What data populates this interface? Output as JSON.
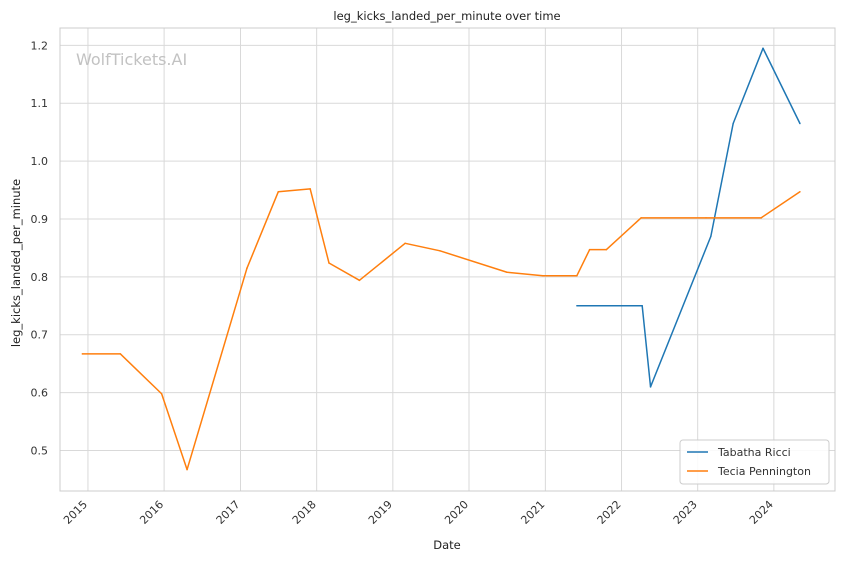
{
  "chart_data": {
    "type": "line",
    "title": "leg_kicks_landed_per_minute over time",
    "xlabel": "Date",
    "ylabel": "leg_kicks_landed_per_minute",
    "watermark": "WolfTickets.AI",
    "grid": true,
    "legend_position": "bottom-right",
    "xlim": [
      "2014-08-20",
      "2024-10-20"
    ],
    "ylim": [
      0.43,
      1.23
    ],
    "x_ticks": [
      "2015",
      "2016",
      "2017",
      "2018",
      "2019",
      "2020",
      "2021",
      "2022",
      "2023",
      "2024"
    ],
    "y_ticks": [
      0.5,
      0.6,
      0.7,
      0.8,
      0.9,
      1.0,
      1.1,
      1.2
    ],
    "y_tick_labels": [
      "0.5",
      "0.6",
      "0.7",
      "0.8",
      "0.9",
      "1.0",
      "1.1",
      "1.2"
    ],
    "series": [
      {
        "name": "Tabatha Ricci",
        "color": "#1f77b4",
        "points": [
          {
            "x": "2021-06-01",
            "y": 0.75
          },
          {
            "x": "2022-04-10",
            "y": 0.75
          },
          {
            "x": "2022-05-20",
            "y": 0.61
          },
          {
            "x": "2023-03-05",
            "y": 0.87
          },
          {
            "x": "2023-06-20",
            "y": 1.065
          },
          {
            "x": "2023-11-10",
            "y": 1.195
          },
          {
            "x": "2024-05-05",
            "y": 1.065
          }
        ]
      },
      {
        "name": "Tecia Pennington",
        "color": "#ff7f0e",
        "points": [
          {
            "x": "2014-12-05",
            "y": 0.667
          },
          {
            "x": "2015-06-05",
            "y": 0.667
          },
          {
            "x": "2015-12-20",
            "y": 0.598
          },
          {
            "x": "2016-04-20",
            "y": 0.467
          },
          {
            "x": "2017-02-01",
            "y": 0.815
          },
          {
            "x": "2017-07-01",
            "y": 0.947
          },
          {
            "x": "2017-12-01",
            "y": 0.952
          },
          {
            "x": "2018-03-01",
            "y": 0.824
          },
          {
            "x": "2018-07-25",
            "y": 0.794
          },
          {
            "x": "2019-03-01",
            "y": 0.858
          },
          {
            "x": "2019-08-15",
            "y": 0.845
          },
          {
            "x": "2020-07-01",
            "y": 0.808
          },
          {
            "x": "2020-12-20",
            "y": 0.802
          },
          {
            "x": "2021-06-01",
            "y": 0.802
          },
          {
            "x": "2021-08-01",
            "y": 0.847
          },
          {
            "x": "2021-10-20",
            "y": 0.847
          },
          {
            "x": "2022-04-05",
            "y": 0.902
          },
          {
            "x": "2023-02-10",
            "y": 0.902
          },
          {
            "x": "2023-11-01",
            "y": 0.902
          },
          {
            "x": "2024-05-05",
            "y": 0.947
          }
        ]
      }
    ]
  }
}
